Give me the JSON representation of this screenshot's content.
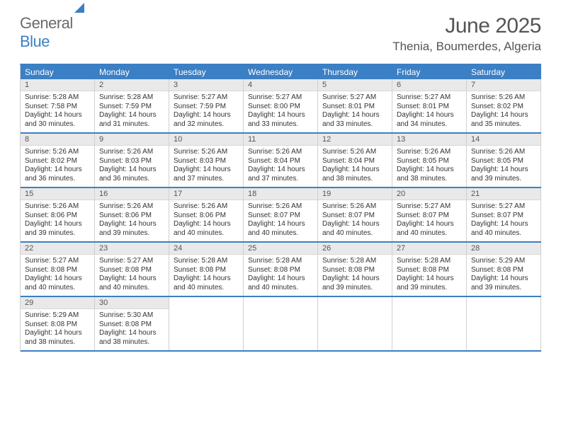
{
  "brand": {
    "general": "General",
    "blue": "Blue"
  },
  "title": "June 2025",
  "location": "Thenia, Boumerdes, Algeria",
  "colors": {
    "accent": "#3b7fc4",
    "header_text": "#555555",
    "daynum_bg": "#e9e9e9",
    "grid_border": "#d0d0d0",
    "body_text": "#333333",
    "background": "#ffffff"
  },
  "weekday_row": {
    "bg": "#3b7fc4",
    "fg": "#ffffff",
    "fontsize": 12
  },
  "weekdays": [
    "Sunday",
    "Monday",
    "Tuesday",
    "Wednesday",
    "Thursday",
    "Friday",
    "Saturday"
  ],
  "typography": {
    "month_title_fontsize": 30,
    "location_fontsize": 17,
    "daynum_fontsize": 11,
    "cell_fontsize": 10
  },
  "layout": {
    "calendar_margin_x": 28,
    "week_border_color": "#3b7fc4",
    "week_border_width": 2
  },
  "weeks": [
    [
      {
        "n": "1",
        "sunrise": "Sunrise: 5:28 AM",
        "sunset": "Sunset: 7:58 PM",
        "day1": "Daylight: 14 hours",
        "day2": "and 30 minutes."
      },
      {
        "n": "2",
        "sunrise": "Sunrise: 5:28 AM",
        "sunset": "Sunset: 7:59 PM",
        "day1": "Daylight: 14 hours",
        "day2": "and 31 minutes."
      },
      {
        "n": "3",
        "sunrise": "Sunrise: 5:27 AM",
        "sunset": "Sunset: 7:59 PM",
        "day1": "Daylight: 14 hours",
        "day2": "and 32 minutes."
      },
      {
        "n": "4",
        "sunrise": "Sunrise: 5:27 AM",
        "sunset": "Sunset: 8:00 PM",
        "day1": "Daylight: 14 hours",
        "day2": "and 33 minutes."
      },
      {
        "n": "5",
        "sunrise": "Sunrise: 5:27 AM",
        "sunset": "Sunset: 8:01 PM",
        "day1": "Daylight: 14 hours",
        "day2": "and 33 minutes."
      },
      {
        "n": "6",
        "sunrise": "Sunrise: 5:27 AM",
        "sunset": "Sunset: 8:01 PM",
        "day1": "Daylight: 14 hours",
        "day2": "and 34 minutes."
      },
      {
        "n": "7",
        "sunrise": "Sunrise: 5:26 AM",
        "sunset": "Sunset: 8:02 PM",
        "day1": "Daylight: 14 hours",
        "day2": "and 35 minutes."
      }
    ],
    [
      {
        "n": "8",
        "sunrise": "Sunrise: 5:26 AM",
        "sunset": "Sunset: 8:02 PM",
        "day1": "Daylight: 14 hours",
        "day2": "and 36 minutes."
      },
      {
        "n": "9",
        "sunrise": "Sunrise: 5:26 AM",
        "sunset": "Sunset: 8:03 PM",
        "day1": "Daylight: 14 hours",
        "day2": "and 36 minutes."
      },
      {
        "n": "10",
        "sunrise": "Sunrise: 5:26 AM",
        "sunset": "Sunset: 8:03 PM",
        "day1": "Daylight: 14 hours",
        "day2": "and 37 minutes."
      },
      {
        "n": "11",
        "sunrise": "Sunrise: 5:26 AM",
        "sunset": "Sunset: 8:04 PM",
        "day1": "Daylight: 14 hours",
        "day2": "and 37 minutes."
      },
      {
        "n": "12",
        "sunrise": "Sunrise: 5:26 AM",
        "sunset": "Sunset: 8:04 PM",
        "day1": "Daylight: 14 hours",
        "day2": "and 38 minutes."
      },
      {
        "n": "13",
        "sunrise": "Sunrise: 5:26 AM",
        "sunset": "Sunset: 8:05 PM",
        "day1": "Daylight: 14 hours",
        "day2": "and 38 minutes."
      },
      {
        "n": "14",
        "sunrise": "Sunrise: 5:26 AM",
        "sunset": "Sunset: 8:05 PM",
        "day1": "Daylight: 14 hours",
        "day2": "and 39 minutes."
      }
    ],
    [
      {
        "n": "15",
        "sunrise": "Sunrise: 5:26 AM",
        "sunset": "Sunset: 8:06 PM",
        "day1": "Daylight: 14 hours",
        "day2": "and 39 minutes."
      },
      {
        "n": "16",
        "sunrise": "Sunrise: 5:26 AM",
        "sunset": "Sunset: 8:06 PM",
        "day1": "Daylight: 14 hours",
        "day2": "and 39 minutes."
      },
      {
        "n": "17",
        "sunrise": "Sunrise: 5:26 AM",
        "sunset": "Sunset: 8:06 PM",
        "day1": "Daylight: 14 hours",
        "day2": "and 40 minutes."
      },
      {
        "n": "18",
        "sunrise": "Sunrise: 5:26 AM",
        "sunset": "Sunset: 8:07 PM",
        "day1": "Daylight: 14 hours",
        "day2": "and 40 minutes."
      },
      {
        "n": "19",
        "sunrise": "Sunrise: 5:26 AM",
        "sunset": "Sunset: 8:07 PM",
        "day1": "Daylight: 14 hours",
        "day2": "and 40 minutes."
      },
      {
        "n": "20",
        "sunrise": "Sunrise: 5:27 AM",
        "sunset": "Sunset: 8:07 PM",
        "day1": "Daylight: 14 hours",
        "day2": "and 40 minutes."
      },
      {
        "n": "21",
        "sunrise": "Sunrise: 5:27 AM",
        "sunset": "Sunset: 8:07 PM",
        "day1": "Daylight: 14 hours",
        "day2": "and 40 minutes."
      }
    ],
    [
      {
        "n": "22",
        "sunrise": "Sunrise: 5:27 AM",
        "sunset": "Sunset: 8:08 PM",
        "day1": "Daylight: 14 hours",
        "day2": "and 40 minutes."
      },
      {
        "n": "23",
        "sunrise": "Sunrise: 5:27 AM",
        "sunset": "Sunset: 8:08 PM",
        "day1": "Daylight: 14 hours",
        "day2": "and 40 minutes."
      },
      {
        "n": "24",
        "sunrise": "Sunrise: 5:28 AM",
        "sunset": "Sunset: 8:08 PM",
        "day1": "Daylight: 14 hours",
        "day2": "and 40 minutes."
      },
      {
        "n": "25",
        "sunrise": "Sunrise: 5:28 AM",
        "sunset": "Sunset: 8:08 PM",
        "day1": "Daylight: 14 hours",
        "day2": "and 40 minutes."
      },
      {
        "n": "26",
        "sunrise": "Sunrise: 5:28 AM",
        "sunset": "Sunset: 8:08 PM",
        "day1": "Daylight: 14 hours",
        "day2": "and 39 minutes."
      },
      {
        "n": "27",
        "sunrise": "Sunrise: 5:28 AM",
        "sunset": "Sunset: 8:08 PM",
        "day1": "Daylight: 14 hours",
        "day2": "and 39 minutes."
      },
      {
        "n": "28",
        "sunrise": "Sunrise: 5:29 AM",
        "sunset": "Sunset: 8:08 PM",
        "day1": "Daylight: 14 hours",
        "day2": "and 39 minutes."
      }
    ],
    [
      {
        "n": "29",
        "sunrise": "Sunrise: 5:29 AM",
        "sunset": "Sunset: 8:08 PM",
        "day1": "Daylight: 14 hours",
        "day2": "and 38 minutes."
      },
      {
        "n": "30",
        "sunrise": "Sunrise: 5:30 AM",
        "sunset": "Sunset: 8:08 PM",
        "day1": "Daylight: 14 hours",
        "day2": "and 38 minutes."
      },
      null,
      null,
      null,
      null,
      null
    ]
  ]
}
